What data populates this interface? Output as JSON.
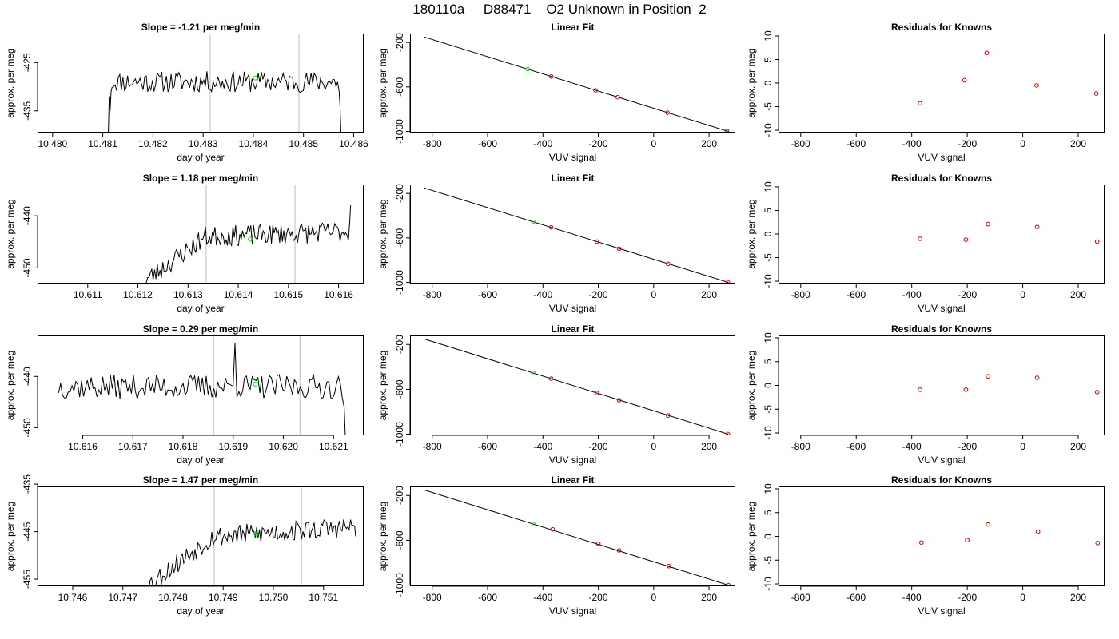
{
  "page": {
    "title": "180110a     D88471    O2 Unknown in Position  2"
  },
  "colors": {
    "trace": "#000000",
    "guide": "#c8c8c8",
    "current": "#00dd00",
    "known": "#cc0000",
    "fitline": "#000000"
  },
  "chart_data": [
    {
      "type": "line",
      "row": 1,
      "col": 1,
      "title": "Slope =  -1.21  per meg/min",
      "xlabel": "day of year",
      "ylabel": "approx. per meg",
      "xlim": [
        10.4797,
        10.4862
      ],
      "ylim": [
        -439.5,
        -419.0
      ],
      "xticks": [
        10.48,
        10.481,
        10.482,
        10.483,
        10.484,
        10.485,
        10.486
      ],
      "xtick_labels": [
        "10.480",
        "10.481",
        "10.482",
        "10.483",
        "10.484",
        "10.485",
        "10.486"
      ],
      "yticks": [
        -425,
        -435
      ],
      "ytick_labels": [
        "-425",
        "-435"
      ],
      "vlines": [
        10.48314,
        10.48491
      ],
      "marker": {
        "x": 10.48404,
        "y": -428.2
      },
      "trace": {
        "x_start": 10.48111,
        "x_end": 10.48576,
        "baseline": -429.0,
        "amplitude": 2.2,
        "seed": 11,
        "head": [
          -440,
          -432,
          -435,
          -431
        ],
        "tail": [
          -431,
          -434,
          -440
        ]
      }
    },
    {
      "type": "line",
      "row": 1,
      "col": 2,
      "title": "Linear Fit",
      "xlabel": "VUV signal",
      "ylabel": "approx. per meg",
      "xlim": [
        -880,
        295
      ],
      "ylim": [
        -1010,
        -120
      ],
      "xticks": [
        -800,
        -600,
        -400,
        -200,
        0,
        200
      ],
      "xtick_labels": [
        "-800",
        "-600",
        "-400",
        "-200",
        "0",
        "200"
      ],
      "yticks": [
        -200,
        -600,
        -1000
      ],
      "ytick_labels": [
        "-200",
        "-600",
        "-1000"
      ],
      "fit_line": {
        "x": [
          -830,
          270
        ],
        "y": [
          -150,
          -1000
        ]
      },
      "knowns": [
        {
          "x": -370,
          "y": -506
        },
        {
          "x": -210,
          "y": -630
        },
        {
          "x": -130,
          "y": -692
        },
        {
          "x": 50,
          "y": -831
        },
        {
          "x": 265,
          "y": -997
        }
      ],
      "unknown": {
        "x": -455,
        "y": -440
      }
    },
    {
      "type": "scatter",
      "row": 1,
      "col": 3,
      "title": "Residuals for Knowns",
      "xlabel": "VUV signal",
      "ylabel": "approx. per meg",
      "xlim": [
        -880,
        295
      ],
      "ylim": [
        -10.5,
        10.5
      ],
      "xticks": [
        -800,
        -600,
        -400,
        -200,
        0,
        200
      ],
      "xtick_labels": [
        "-800",
        "-600",
        "-400",
        "-200",
        "0",
        "200"
      ],
      "yticks": [
        10,
        5,
        0,
        -5,
        -10
      ],
      "ytick_labels": [
        "10",
        "5",
        "0",
        "-5",
        "-10"
      ],
      "points": [
        {
          "x": -370,
          "y": -4.3
        },
        {
          "x": -210,
          "y": 0.6
        },
        {
          "x": -130,
          "y": 6.4
        },
        {
          "x": 50,
          "y": -0.5
        },
        {
          "x": 265,
          "y": -2.2
        }
      ]
    },
    {
      "type": "line",
      "row": 2,
      "col": 1,
      "title": "Slope =  1.18  per meg/min",
      "xlabel": "day of year",
      "ylabel": "approx. per meg",
      "xlim": [
        10.61,
        10.6165
      ],
      "ylim": [
        -453.0,
        -434.0
      ],
      "xticks": [
        10.611,
        10.612,
        10.613,
        10.614,
        10.615,
        10.616
      ],
      "xtick_labels": [
        "10.611",
        "10.612",
        "10.613",
        "10.614",
        "10.615",
        "10.616"
      ],
      "yticks": [
        -440,
        -450
      ],
      "ytick_labels": [
        "-440",
        "-450"
      ],
      "vlines": [
        10.61336,
        10.61513
      ],
      "marker": {
        "x": 10.61424,
        "y": -444.5
      },
      "trace": {
        "x_start": 10.61214,
        "x_end": 10.61625,
        "baseline": -443.0,
        "amplitude": 2.0,
        "seed": 23,
        "ramp_from": -452.5,
        "ramp_to": -444.0,
        "ramp_end": 10.61335,
        "tail": [
          -441,
          -438
        ]
      }
    },
    {
      "type": "line",
      "row": 2,
      "col": 2,
      "title": "Linear Fit",
      "xlabel": "VUV signal",
      "ylabel": "approx. per meg",
      "xlim": [
        -880,
        295
      ],
      "ylim": [
        -1010,
        -120
      ],
      "xticks": [
        -800,
        -600,
        -400,
        -200,
        0,
        200
      ],
      "xtick_labels": [
        "-800",
        "-600",
        "-400",
        "-200",
        "0",
        "200"
      ],
      "yticks": [
        -200,
        -600,
        -1000
      ],
      "ytick_labels": [
        "-200",
        "-600",
        "-1000"
      ],
      "fit_line": {
        "x": [
          -830,
          270
        ],
        "y": [
          -150,
          -1000
        ]
      },
      "knowns": [
        {
          "x": -370,
          "y": -505
        },
        {
          "x": -205,
          "y": -633
        },
        {
          "x": -125,
          "y": -697
        },
        {
          "x": 52,
          "y": -833
        },
        {
          "x": 268,
          "y": -999
        }
      ],
      "unknown": {
        "x": -435,
        "y": -455
      }
    },
    {
      "type": "scatter",
      "row": 2,
      "col": 3,
      "title": "Residuals for Knowns",
      "xlabel": "VUV signal",
      "ylabel": "approx. per meg",
      "xlim": [
        -880,
        295
      ],
      "ylim": [
        -10.5,
        10.5
      ],
      "xticks": [
        -800,
        -600,
        -400,
        -200,
        0,
        200
      ],
      "xtick_labels": [
        "-800",
        "-600",
        "-400",
        "-200",
        "0",
        "200"
      ],
      "yticks": [
        10,
        5,
        0,
        -5,
        -10
      ],
      "ytick_labels": [
        "10",
        "5",
        "0",
        "-5",
        "-10"
      ],
      "points": [
        {
          "x": -370,
          "y": -1.0
        },
        {
          "x": -205,
          "y": -1.2
        },
        {
          "x": -125,
          "y": 2.1
        },
        {
          "x": 52,
          "y": 1.5
        },
        {
          "x": 268,
          "y": -1.6
        }
      ]
    },
    {
      "type": "line",
      "row": 3,
      "col": 1,
      "title": "Slope =  0.29  per meg/min",
      "xlabel": "day of year",
      "ylabel": "approx. per meg",
      "xlim": [
        10.6151,
        10.6216
      ],
      "ylim": [
        -451.5,
        -432.0
      ],
      "xticks": [
        10.616,
        10.617,
        10.618,
        10.619,
        10.62,
        10.621
      ],
      "xtick_labels": [
        "10.616",
        "10.617",
        "10.618",
        "10.619",
        "10.620",
        "10.621"
      ],
      "yticks": [
        -440,
        -450
      ],
      "ytick_labels": [
        "-440",
        "-450"
      ],
      "vlines": [
        10.61861,
        10.62033
      ],
      "marker": {
        "x": 10.61944,
        "y": -441.5
      },
      "trace": {
        "x_start": 10.61552,
        "x_end": 10.62125,
        "baseline": -442.0,
        "amplitude": 2.4,
        "seed": 37,
        "spike": {
          "x": 10.61902,
          "y": -433.5
        },
        "tail": [
          -446,
          -452
        ]
      }
    },
    {
      "type": "line",
      "row": 3,
      "col": 2,
      "title": "Linear Fit",
      "xlabel": "VUV signal",
      "ylabel": "approx. per meg",
      "xlim": [
        -880,
        295
      ],
      "ylim": [
        -1010,
        -120
      ],
      "xticks": [
        -800,
        -600,
        -400,
        -200,
        0,
        200
      ],
      "xtick_labels": [
        "-800",
        "-600",
        "-400",
        "-200",
        "0",
        "200"
      ],
      "yticks": [
        -200,
        -600,
        -1000
      ],
      "ytick_labels": [
        "-200",
        "-600",
        "-1000"
      ],
      "fit_line": {
        "x": [
          -830,
          270
        ],
        "y": [
          -150,
          -1000
        ]
      },
      "knowns": [
        {
          "x": -370,
          "y": -505
        },
        {
          "x": -205,
          "y": -633
        },
        {
          "x": -125,
          "y": -697
        },
        {
          "x": 52,
          "y": -833
        },
        {
          "x": 268,
          "y": -999
        }
      ],
      "unknown": {
        "x": -435,
        "y": -455
      }
    },
    {
      "type": "scatter",
      "row": 3,
      "col": 3,
      "title": "Residuals for Knowns",
      "xlabel": "VUV signal",
      "ylabel": "approx. per meg",
      "xlim": [
        -880,
        295
      ],
      "ylim": [
        -10.5,
        10.5
      ],
      "xticks": [
        -800,
        -600,
        -400,
        -200,
        0,
        200
      ],
      "xtick_labels": [
        "-800",
        "-600",
        "-400",
        "-200",
        "0",
        "200"
      ],
      "yticks": [
        10,
        5,
        0,
        -5,
        -10
      ],
      "ytick_labels": [
        "10",
        "5",
        "0",
        "-5",
        "-10"
      ],
      "points": [
        {
          "x": -370,
          "y": -0.9
        },
        {
          "x": -205,
          "y": -0.9
        },
        {
          "x": -125,
          "y": 1.9
        },
        {
          "x": 52,
          "y": 1.6
        },
        {
          "x": 268,
          "y": -1.4
        }
      ]
    },
    {
      "type": "line",
      "row": 4,
      "col": 1,
      "title": "Slope =  1.47  per meg/min",
      "xlabel": "day of year",
      "ylabel": "approx. per meg",
      "xlim": [
        10.7453,
        10.7518
      ],
      "ylim": [
        -456.5,
        -435.5
      ],
      "xticks": [
        10.746,
        10.747,
        10.748,
        10.749,
        10.75,
        10.751
      ],
      "xtick_labels": [
        "10.746",
        "10.747",
        "10.748",
        "10.749",
        "10.750",
        "10.751"
      ],
      "yticks": [
        -435,
        -445,
        -455
      ],
      "ytick_labels": [
        "-435",
        "-445",
        "-455"
      ],
      "vlines": [
        10.74882,
        10.75056
      ],
      "marker": {
        "x": 10.74966,
        "y": -445.5
      },
      "trace": {
        "x_start": 10.74746,
        "x_end": 10.75165,
        "baseline": -444.0,
        "amplitude": 2.2,
        "seed": 53,
        "ramp_from": -456.5,
        "ramp_to": -446.0,
        "ramp_end": 10.7488,
        "tail": [
          -444,
          -446
        ]
      }
    },
    {
      "type": "line",
      "row": 4,
      "col": 2,
      "title": "Linear Fit",
      "xlabel": "VUV signal",
      "ylabel": "approx. per meg",
      "xlim": [
        -880,
        295
      ],
      "ylim": [
        -1010,
        -120
      ],
      "xticks": [
        -800,
        -600,
        -400,
        -200,
        0,
        200
      ],
      "xtick_labels": [
        "-800",
        "-600",
        "-400",
        "-200",
        "0",
        "200"
      ],
      "yticks": [
        -200,
        -600,
        -1000
      ],
      "ytick_labels": [
        "-200",
        "-600",
        "-1000"
      ],
      "fit_line": {
        "x": [
          -830,
          270
        ],
        "y": [
          -150,
          -1000
        ]
      },
      "knowns": [
        {
          "x": -365,
          "y": -502
        },
        {
          "x": -200,
          "y": -630
        },
        {
          "x": -125,
          "y": -690
        },
        {
          "x": 55,
          "y": -830
        },
        {
          "x": 270,
          "y": -1000
        }
      ],
      "unknown": {
        "x": -435,
        "y": -455
      }
    },
    {
      "type": "scatter",
      "row": 4,
      "col": 3,
      "title": "Residuals for Knowns",
      "xlabel": "VUV signal",
      "ylabel": "approx. per meg",
      "xlim": [
        -880,
        295
      ],
      "ylim": [
        -10.5,
        10.5
      ],
      "xticks": [
        -800,
        -600,
        -400,
        -200,
        0,
        200
      ],
      "xtick_labels": [
        "-800",
        "-600",
        "-400",
        "-200",
        "0",
        "200"
      ],
      "yticks": [
        10,
        5,
        0,
        -5,
        -10
      ],
      "ytick_labels": [
        "10",
        "5",
        "0",
        "-5",
        "-10"
      ],
      "points": [
        {
          "x": -365,
          "y": -1.3
        },
        {
          "x": -200,
          "y": -0.8
        },
        {
          "x": -125,
          "y": 2.5
        },
        {
          "x": 55,
          "y": 1.0
        },
        {
          "x": 270,
          "y": -1.4
        }
      ]
    }
  ]
}
